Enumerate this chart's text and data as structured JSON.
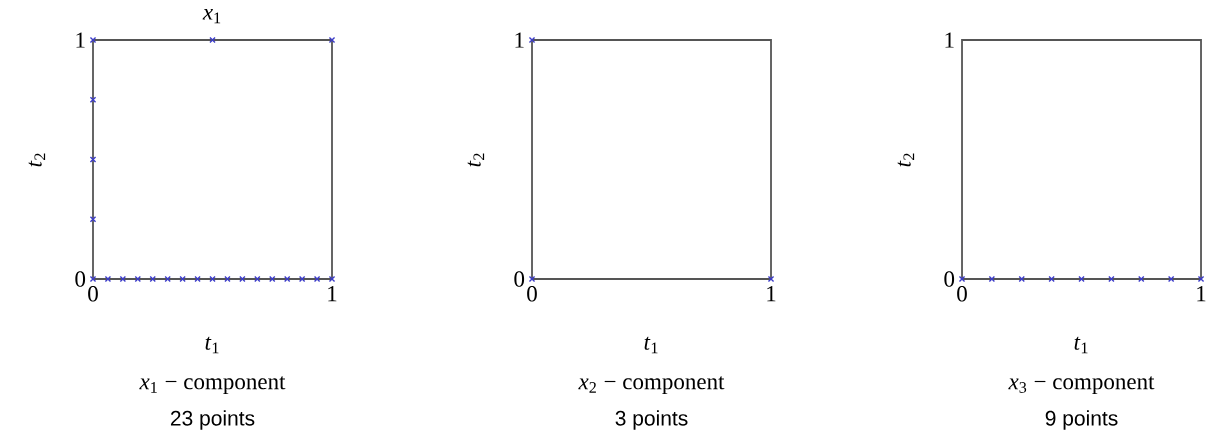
{
  "chart_data": [
    {
      "type": "scatter",
      "title": "*x*$_{1}$",
      "xlabel": "*t*$_{1}$",
      "ylabel": "*t*$_{2}$",
      "x": [
        0,
        0.0625,
        0.125,
        0.1875,
        0.25,
        0.3125,
        0.375,
        0.4375,
        0.5,
        0.5625,
        0.625,
        0.6875,
        0.75,
        0.8125,
        0.875,
        0.9375,
        1,
        0,
        0,
        0,
        0,
        0.5,
        1
      ],
      "values": [
        0,
        0,
        0,
        0,
        0,
        0,
        0,
        0,
        0,
        0,
        0,
        0,
        0,
        0,
        0,
        0,
        0,
        0.25,
        0.5,
        0.75,
        1,
        1,
        1
      ],
      "color": "#3c3cc8",
      "marker": "cross",
      "xlim": [
        0,
        1
      ],
      "ylim": [
        0,
        1
      ],
      "xticks": [
        0,
        1
      ],
      "yticks": [
        0,
        1
      ],
      "annotations": [
        "*x*$_{1}$ − component",
        "23 points"
      ]
    },
    {
      "type": "scatter",
      "xlabel": "*t*$_{1}$",
      "ylabel": "*t*$_{2}$",
      "x": [
        0,
        1,
        0
      ],
      "values": [
        0,
        0,
        1
      ],
      "color": "#3c3cc8",
      "marker": "cross",
      "xlim": [
        0,
        1
      ],
      "ylim": [
        0,
        1
      ],
      "xticks": [
        0,
        1
      ],
      "yticks": [
        0,
        1
      ],
      "annotations": [
        "*x*$_{2}$ − component",
        "3 points"
      ]
    },
    {
      "type": "scatter",
      "xlabel": "*t*$_{1}$",
      "ylabel": "*t*$_{2}$",
      "x": [
        0,
        0.125,
        0.25,
        0.375,
        0.5,
        0.625,
        0.75,
        0.875,
        1
      ],
      "values": [
        0,
        0,
        0,
        0,
        0,
        0,
        0,
        0,
        0
      ],
      "color": "#3c3cc8",
      "marker": "cross",
      "xlim": [
        0,
        1
      ],
      "ylim": [
        0,
        1
      ],
      "xticks": [
        0,
        1
      ],
      "yticks": [
        0,
        1
      ],
      "annotations": [
        "*x*$_{3}$ − component",
        "9 points"
      ]
    }
  ]
}
